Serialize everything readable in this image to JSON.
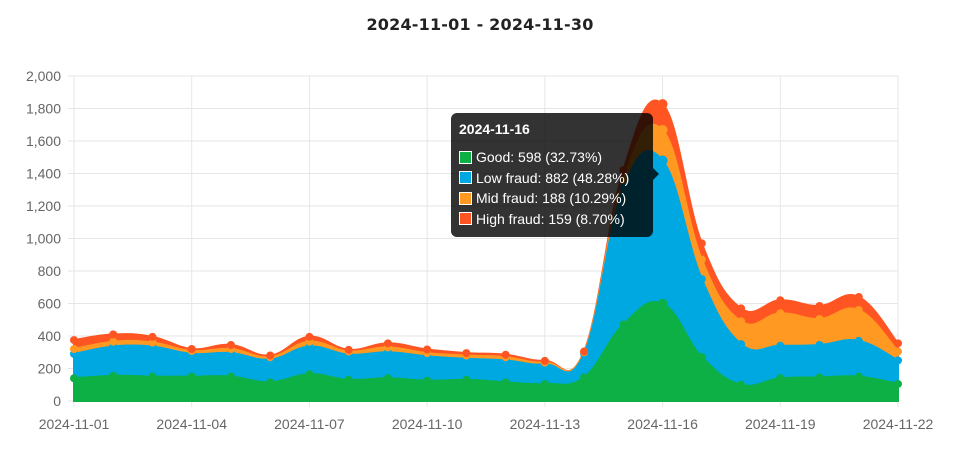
{
  "chart_data": {
    "type": "area",
    "stacked": true,
    "title": "2024-11-01 - 2024-11-30",
    "x": [
      "2024-11-01",
      "2024-11-02",
      "2024-11-03",
      "2024-11-04",
      "2024-11-05",
      "2024-11-06",
      "2024-11-07",
      "2024-11-08",
      "2024-11-09",
      "2024-11-10",
      "2024-11-11",
      "2024-11-12",
      "2024-11-13",
      "2024-11-14",
      "2024-11-15",
      "2024-11-16",
      "2024-11-17",
      "2024-11-18",
      "2024-11-19",
      "2024-11-20",
      "2024-11-21",
      "2024-11-22"
    ],
    "x_tick_labels": [
      "2024-11-01",
      "2024-11-04",
      "2024-11-07",
      "2024-11-10",
      "2024-11-13",
      "2024-11-16",
      "2024-11-19",
      "2024-11-22"
    ],
    "ylim": [
      0,
      2000
    ],
    "y_ticks": [
      0,
      200,
      400,
      600,
      800,
      1000,
      1200,
      1400,
      1600,
      1800,
      2000
    ],
    "y_tick_labels": [
      "0",
      "200",
      "400",
      "600",
      "800",
      "1,000",
      "1,200",
      "1,400",
      "1,600",
      "1,800",
      "2,000"
    ],
    "grid": true,
    "series": [
      {
        "name": "Good",
        "color": "#0db045",
        "values": [
          140,
          155,
          150,
          150,
          150,
          115,
          165,
          130,
          140,
          125,
          130,
          115,
          105,
          145,
          470,
          598,
          270,
          100,
          140,
          145,
          150,
          105
        ]
      },
      {
        "name": "Low fraud",
        "color": "#00a8e1",
        "values": [
          150,
          180,
          185,
          140,
          145,
          140,
          170,
          155,
          160,
          150,
          130,
          135,
          120,
          145,
          840,
          882,
          480,
          250,
          200,
          200,
          220,
          145
        ]
      },
      {
        "name": "Mid fraud",
        "color": "#ff9922",
        "values": [
          30,
          30,
          25,
          18,
          25,
          15,
          30,
          20,
          30,
          20,
          20,
          20,
          12,
          10,
          50,
          188,
          120,
          140,
          200,
          160,
          190,
          55
        ]
      },
      {
        "name": "High fraud",
        "color": "#ff5522",
        "values": [
          55,
          45,
          35,
          12,
          25,
          10,
          30,
          10,
          25,
          22,
          15,
          15,
          10,
          5,
          60,
          159,
          100,
          80,
          80,
          80,
          80,
          50
        ]
      }
    ],
    "tooltip": {
      "title": "2024-11-16",
      "rows": [
        {
          "text": "Good: 598 (32.73%)",
          "color": "#0db045"
        },
        {
          "text": "Low fraud: 882 (48.28%)",
          "color": "#00a8e1"
        },
        {
          "text": "Mid fraud: 188 (10.29%)",
          "color": "#ff9922"
        },
        {
          "text": "High fraud: 159 (8.70%)",
          "color": "#ff5522"
        }
      ]
    }
  }
}
